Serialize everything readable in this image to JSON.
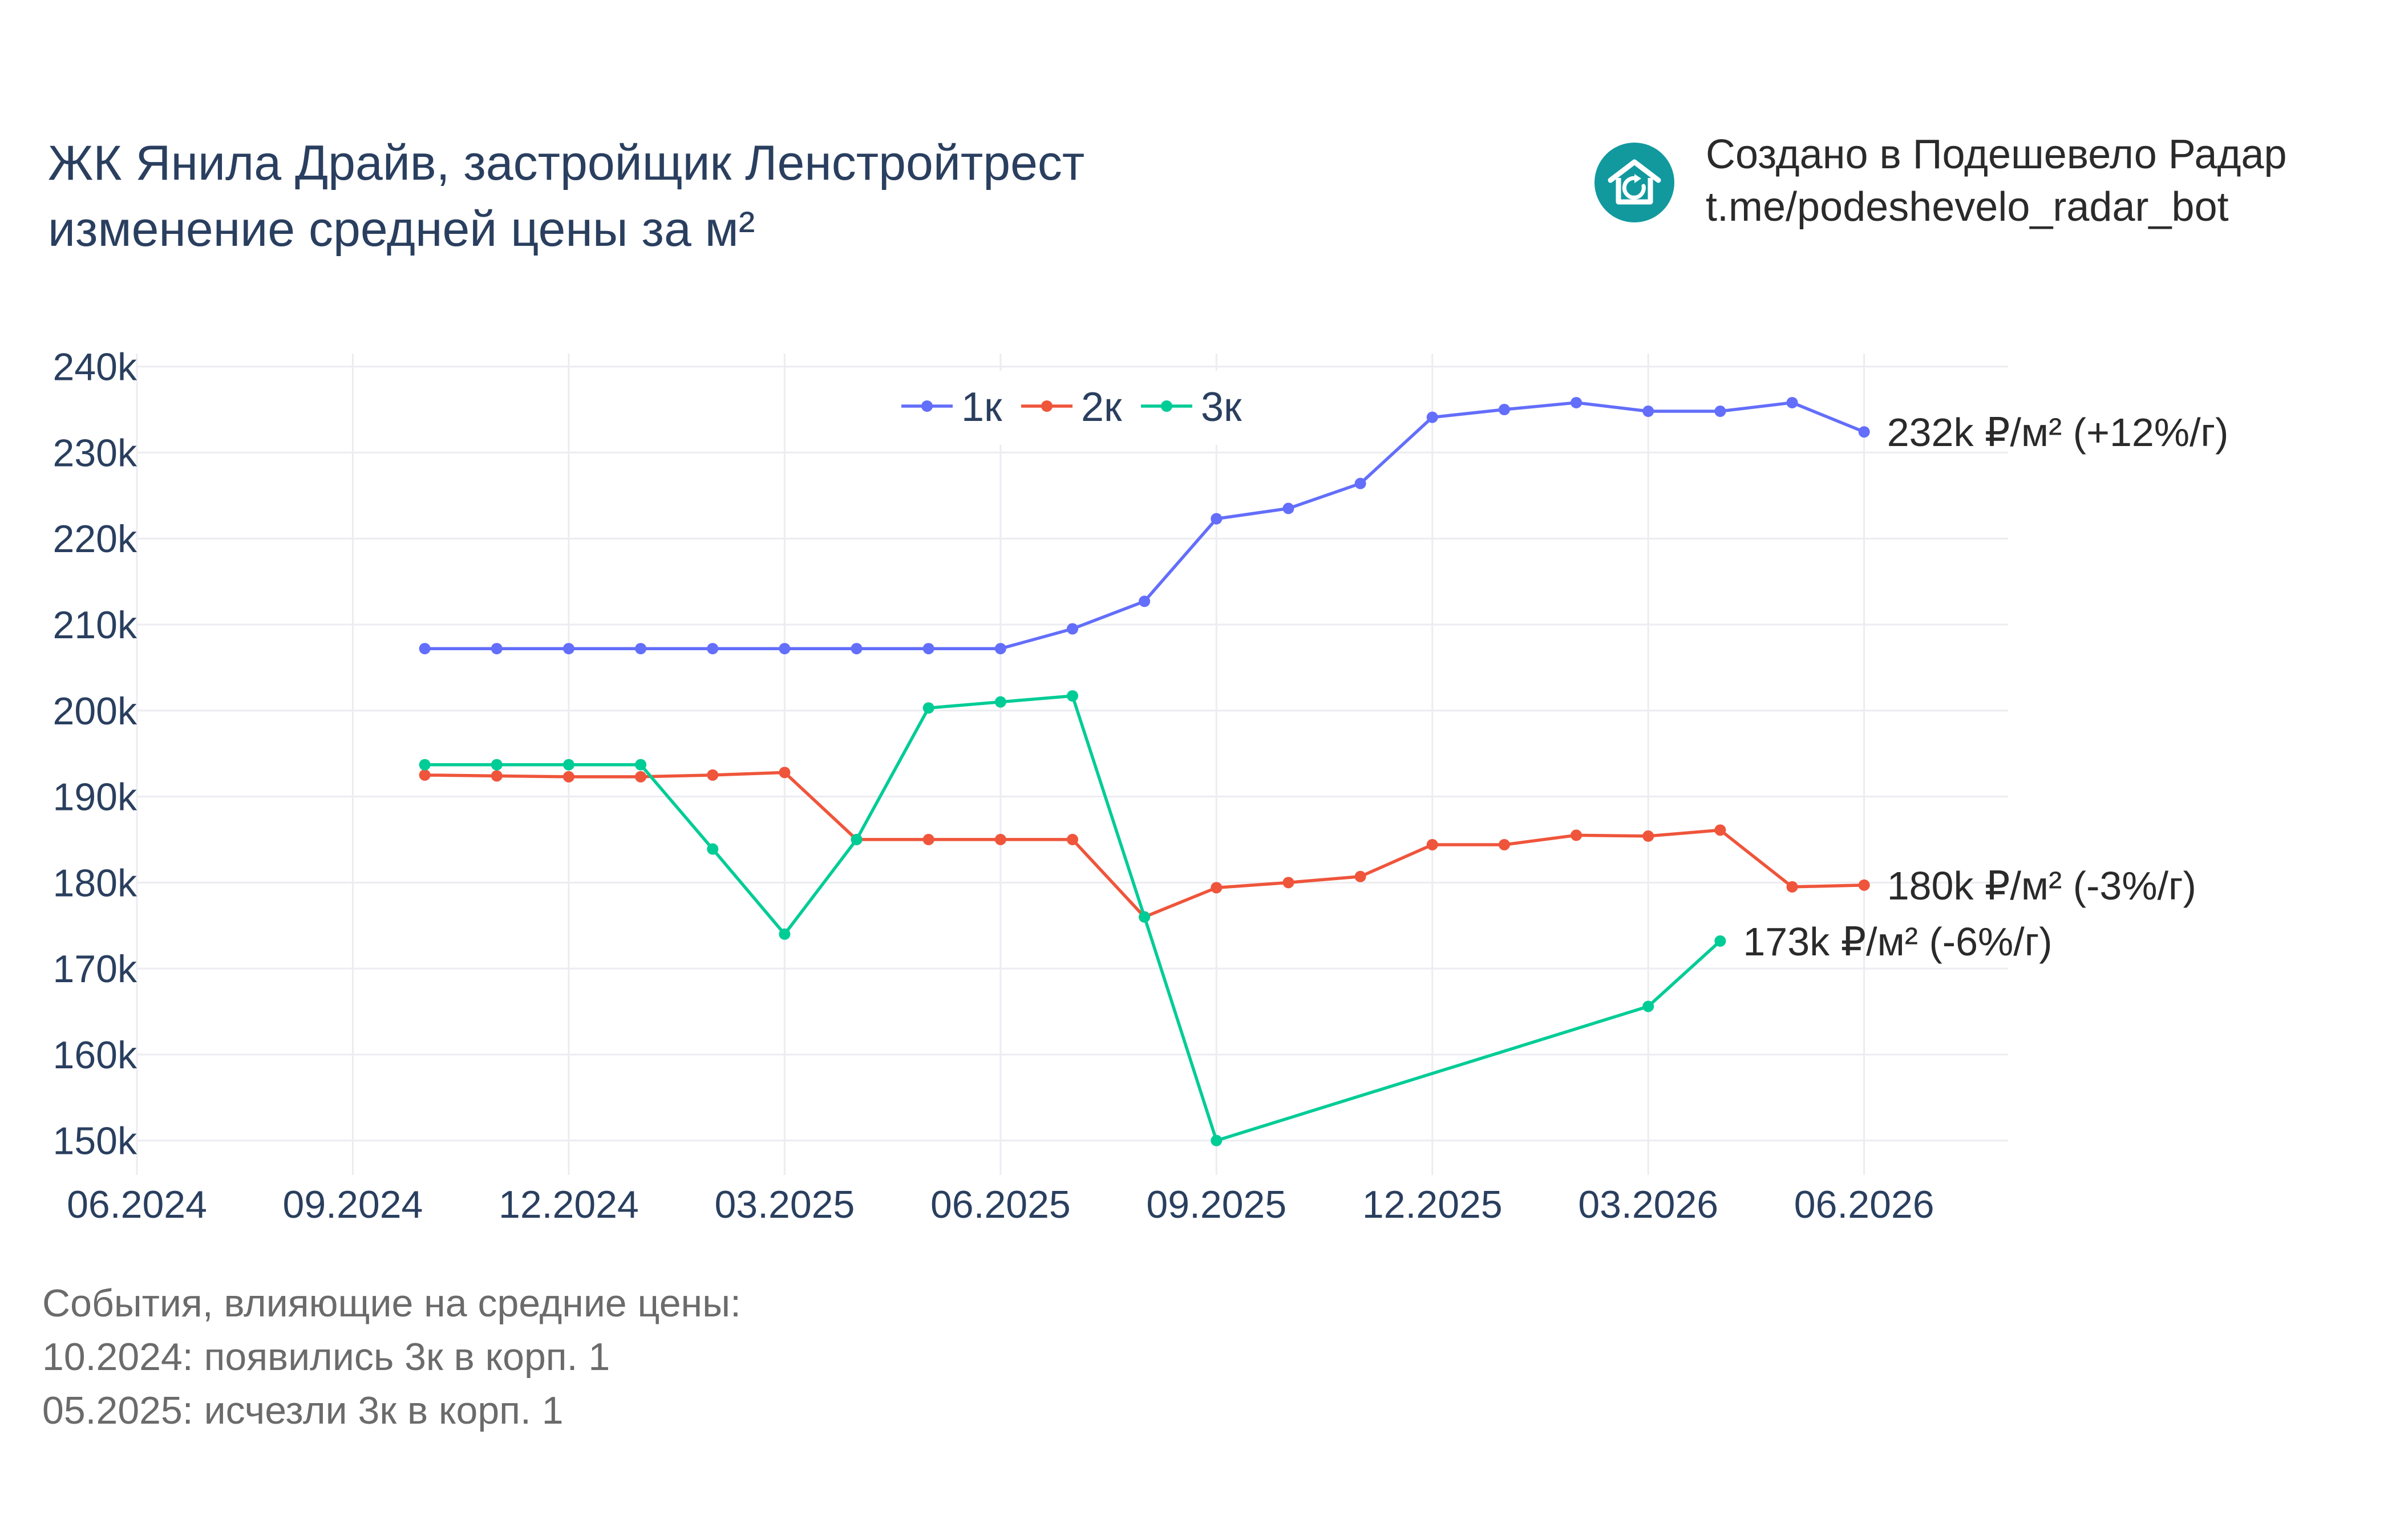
{
  "title": {
    "line1": "ЖК Янила Драйв, застройщик Ленстройтрест",
    "line2": "изменение средней цены за м²"
  },
  "brand": {
    "line1": "Создано в Подешевело Радар",
    "line2": "t.me/podeshevelo_radar_bot",
    "logo_icon": "house-refresh-icon",
    "logo_color": "#11999e"
  },
  "events": {
    "heading": "События, влияющие на средние цены:",
    "items": [
      "10.2024: появились 3к в корп. 1",
      "05.2025: исчезли 3к в корп. 1"
    ]
  },
  "chart_data": {
    "type": "line",
    "grid": true,
    "legend_position": "top-center",
    "ylim": [
      146000,
      241500
    ],
    "xlim": [
      "2024-06",
      "2026-08"
    ],
    "y_ticks": [
      150000,
      160000,
      170000,
      180000,
      190000,
      200000,
      210000,
      220000,
      230000,
      240000
    ],
    "y_tick_labels": [
      "150k",
      "160k",
      "170k",
      "180k",
      "190k",
      "200k",
      "210k",
      "220k",
      "230k",
      "240k"
    ],
    "x_ticks": [
      "2024-06",
      "2024-09",
      "2024-12",
      "2025-03",
      "2025-06",
      "2025-09",
      "2025-12",
      "2026-03",
      "2026-06"
    ],
    "x_tick_labels": [
      "06.2024",
      "09.2024",
      "12.2024",
      "03.2025",
      "06.2025",
      "09.2025",
      "12.2025",
      "03.2026",
      "06.2026"
    ],
    "series": [
      {
        "name": "1к",
        "color": "#636efa",
        "x": [
          "2024-10",
          "2024-11",
          "2024-12",
          "2025-01",
          "2025-02",
          "2025-03",
          "2025-04",
          "2025-05",
          "2025-06",
          "2025-07",
          "2025-08",
          "2025-09",
          "2025-10",
          "2025-11",
          "2025-12",
          "2026-01",
          "2026-02",
          "2026-03",
          "2026-04",
          "2026-05",
          "2026-06"
        ],
        "y": [
          207200,
          207200,
          207200,
          207200,
          207200,
          207200,
          207200,
          207200,
          207200,
          209500,
          212700,
          222300,
          223500,
          226400,
          234100,
          235000,
          235800,
          234800,
          234800,
          235800,
          232400
        ],
        "end_label": "232k ₽/м² (+12%/г)"
      },
      {
        "name": "2к",
        "color": "#ef553b",
        "x": [
          "2024-10",
          "2024-11",
          "2024-12",
          "2025-01",
          "2025-02",
          "2025-03",
          "2025-04",
          "2025-05",
          "2025-06",
          "2025-07",
          "2025-08",
          "2025-09",
          "2025-10",
          "2025-11",
          "2025-12",
          "2026-01",
          "2026-02",
          "2026-03",
          "2026-04",
          "2026-05",
          "2026-06"
        ],
        "y": [
          192500,
          192400,
          192300,
          192300,
          192500,
          192800,
          185000,
          185000,
          185000,
          185000,
          176000,
          179400,
          180000,
          180700,
          184400,
          184400,
          185500,
          185400,
          186100,
          179500,
          179700
        ],
        "end_label": "180k ₽/м² (-3%/г)"
      },
      {
        "name": "3к",
        "color": "#00cc96",
        "x": [
          "2024-10",
          "2024-11",
          "2024-12",
          "2025-01",
          "2025-02",
          "2025-03",
          "2025-04",
          "2025-05",
          "2025-06",
          "2025-07",
          "2025-08",
          "2025-09",
          "2026-03",
          "2026-04"
        ],
        "y": [
          193700,
          193700,
          193700,
          193700,
          183900,
          174000,
          185000,
          200300,
          201000,
          201700,
          176000,
          150000,
          165600,
          173200
        ],
        "end_label": "173k ₽/м² (-6%/г)"
      }
    ]
  }
}
